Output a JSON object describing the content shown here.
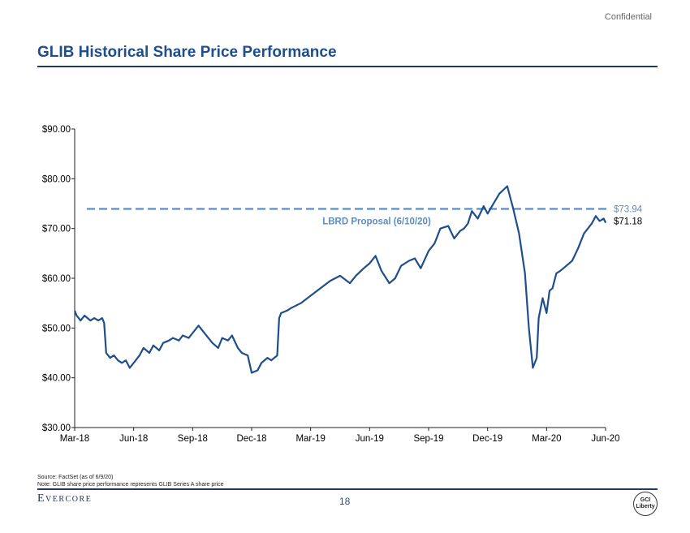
{
  "header": {
    "confidential": "Confidential",
    "title": "GLIB Historical Share Price Performance"
  },
  "chart_data": {
    "type": "line",
    "title": "GLIB Historical Share Price Performance",
    "ylim": [
      30,
      90
    ],
    "yticks": [
      30,
      40,
      50,
      60,
      70,
      80,
      90
    ],
    "ytick_labels": [
      "$30.00",
      "$40.00",
      "$50.00",
      "$60.00",
      "$70.00",
      "$80.00",
      "$90.00"
    ],
    "xlim": [
      0,
      27
    ],
    "xticks": [
      0,
      3,
      6,
      9,
      12,
      15,
      18,
      21,
      24,
      27
    ],
    "xtick_labels": [
      "Mar-18",
      "Jun-18",
      "Sep-18",
      "Dec-18",
      "Mar-19",
      "Jun-19",
      "Sep-19",
      "Dec-19",
      "Mar-20",
      "Jun-20"
    ],
    "series": [
      {
        "name": "GLIB Series A share price",
        "color": "#1f4e8c",
        "x": [
          0,
          0.1,
          0.3,
          0.5,
          0.8,
          1.0,
          1.2,
          1.4,
          1.5,
          1.6,
          1.8,
          2.0,
          2.2,
          2.4,
          2.6,
          2.8,
          3.0,
          3.3,
          3.5,
          3.8,
          4.0,
          4.3,
          4.5,
          4.8,
          5.0,
          5.3,
          5.5,
          5.8,
          6.0,
          6.3,
          6.5,
          6.8,
          7.0,
          7.3,
          7.5,
          7.8,
          8.0,
          8.3,
          8.5,
          8.8,
          9.0,
          9.3,
          9.5,
          9.8,
          10.0,
          10.3,
          10.4,
          10.5,
          10.8,
          11.0,
          11.5,
          12.0,
          12.5,
          13.0,
          13.5,
          14.0,
          14.3,
          14.7,
          15.0,
          15.3,
          15.6,
          16.0,
          16.3,
          16.6,
          17.0,
          17.3,
          17.6,
          18.0,
          18.3,
          18.6,
          19.0,
          19.3,
          19.6,
          19.8,
          20.0,
          20.2,
          20.5,
          20.8,
          21.0,
          21.3,
          21.6,
          22.0,
          22.3,
          22.6,
          22.9,
          23.1,
          23.3,
          23.5,
          23.6,
          23.8,
          24.0,
          24.15,
          24.3,
          24.5,
          24.7,
          25.0,
          25.3,
          25.6,
          25.9,
          26.1,
          26.3,
          26.5,
          26.7,
          26.9,
          27.0
        ],
        "y": [
          53.5,
          52.5,
          51.5,
          52.5,
          51.5,
          52.0,
          51.5,
          52.0,
          51.0,
          45.0,
          44.0,
          44.5,
          43.5,
          43.0,
          43.5,
          42.0,
          43.0,
          44.5,
          46.0,
          45.0,
          46.5,
          45.5,
          47.0,
          47.5,
          48.0,
          47.5,
          48.5,
          48.0,
          49.0,
          50.5,
          49.5,
          48.0,
          47.0,
          46.0,
          48.0,
          47.5,
          48.5,
          46.0,
          45.0,
          44.5,
          41.0,
          41.5,
          43.0,
          44.0,
          43.5,
          44.5,
          52.0,
          53.0,
          53.5,
          54.0,
          55.0,
          56.5,
          58.0,
          59.5,
          60.5,
          59.0,
          60.5,
          62.0,
          63.0,
          64.5,
          61.5,
          59.0,
          60.0,
          62.5,
          63.5,
          64.0,
          62.0,
          65.5,
          67.0,
          70.0,
          70.5,
          68.0,
          69.5,
          70.0,
          71.0,
          73.5,
          72.0,
          74.5,
          73.0,
          75.0,
          77.0,
          78.5,
          74.0,
          69.0,
          61.0,
          50.0,
          42.0,
          44.0,
          52.0,
          56.0,
          53.0,
          57.5,
          58.0,
          61.0,
          61.5,
          62.5,
          63.5,
          66.0,
          69.0,
          70.0,
          71.0,
          72.5,
          71.5,
          72.0,
          71.18
        ]
      }
    ],
    "reference_line": {
      "value": 73.94,
      "label": "LBRD Proposal (6/10/20)",
      "value_label": "$73.94",
      "color": "#5b8ec4"
    },
    "last_value_label": "$71.18"
  },
  "footer": {
    "source": "Source: FactSet (as of 6/9/20)",
    "note": "Note: GLIB share price performance represents GLIB Series A share price",
    "logo": "Evercore",
    "page": "18",
    "gci_line1": "GCI",
    "gci_line2": "Liberty"
  }
}
